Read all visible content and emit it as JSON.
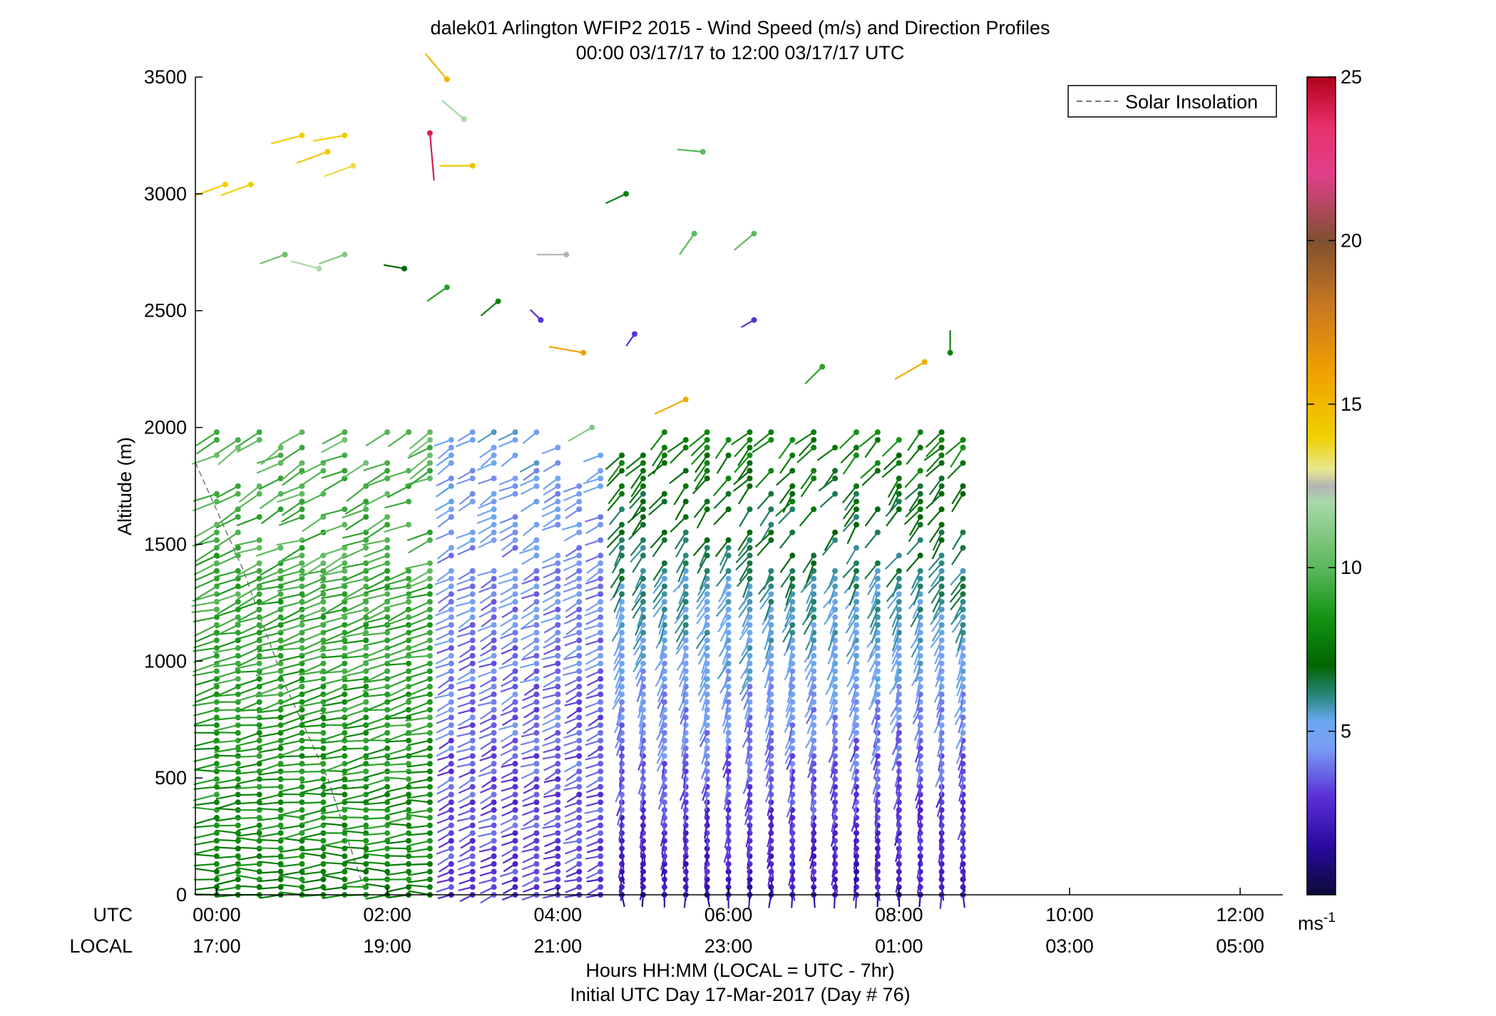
{
  "title_line1": "dalek01 Arlington WFIP2 2015 - Wind Speed (m/s) and Direction Profiles",
  "title_line2": "00:00 03/17/17 to 12:00 03/17/17  UTC",
  "ylabel": "Altitude (m)",
  "xlabel_line1": "Hours HH:MM  (LOCAL = UTC - 7hr)",
  "xlabel_line2": "Initial UTC Day 17-Mar-2017 (Day # 76)",
  "utc_row_label": "UTC",
  "local_row_label": "LOCAL",
  "legend_label": "Solar Insolation",
  "colorbar_unit": "ms",
  "colorbar_unit_exp": "-1",
  "chart_data": {
    "type": "scatter",
    "description_kind": "wind barb profile plot",
    "x_range_hours": [
      -0.25,
      12.5
    ],
    "y_range_m": [
      0,
      3500
    ],
    "y_ticks": [
      {
        "value": 0,
        "label": "0"
      },
      {
        "value": 500,
        "label": "500"
      },
      {
        "value": 1000,
        "label": "1000"
      },
      {
        "value": 1500,
        "label": "1500"
      },
      {
        "value": 2000,
        "label": "2000"
      },
      {
        "value": 2500,
        "label": "2500"
      },
      {
        "value": 3000,
        "label": "3000"
      },
      {
        "value": 3500,
        "label": "3500"
      }
    ],
    "x_ticks": [
      {
        "value": 0,
        "utc": "00:00",
        "local": "17:00"
      },
      {
        "value": 2,
        "utc": "02:00",
        "local": "19:00"
      },
      {
        "value": 4,
        "utc": "04:00",
        "local": "21:00"
      },
      {
        "value": 6,
        "utc": "06:00",
        "local": "23:00"
      },
      {
        "value": 8,
        "utc": "08:00",
        "local": "01:00"
      },
      {
        "value": 10,
        "utc": "10:00",
        "local": "03:00"
      },
      {
        "value": 12,
        "utc": "12:00",
        "local": "05:00"
      }
    ],
    "colorbar": {
      "range": [
        0,
        25
      ],
      "ticks": [
        {
          "value": 5,
          "label": "5"
        },
        {
          "value": 10,
          "label": "10"
        },
        {
          "value": 15,
          "label": "15"
        },
        {
          "value": 20,
          "label": "20"
        },
        {
          "value": 25,
          "label": "25"
        }
      ],
      "stops": [
        {
          "v": 0,
          "c": "#0b0b3a"
        },
        {
          "v": 1.5,
          "c": "#2a0aa0"
        },
        {
          "v": 3,
          "c": "#5a30d8"
        },
        {
          "v": 4.5,
          "c": "#7a9ef4"
        },
        {
          "v": 5.3,
          "c": "#6aa8f0"
        },
        {
          "v": 6,
          "c": "#2e8a8a"
        },
        {
          "v": 7,
          "c": "#006400"
        },
        {
          "v": 8.5,
          "c": "#149414"
        },
        {
          "v": 10,
          "c": "#5cb85c"
        },
        {
          "v": 12,
          "c": "#a8d8a8"
        },
        {
          "v": 12.5,
          "c": "#b4b4b4"
        },
        {
          "v": 13,
          "c": "#e8e890"
        },
        {
          "v": 14,
          "c": "#f0d000"
        },
        {
          "v": 16,
          "c": "#f0a000"
        },
        {
          "v": 18,
          "c": "#c87820"
        },
        {
          "v": 20,
          "c": "#805030"
        },
        {
          "v": 22,
          "c": "#e0408a"
        },
        {
          "v": 23.5,
          "c": "#e8306a"
        },
        {
          "v": 25,
          "c": "#b0001a"
        }
      ]
    },
    "solar_insolation_line": {
      "style": "dashed gray",
      "points": [
        [
          -0.25,
          1850
        ],
        [
          0.3,
          1400
        ],
        [
          0.8,
          900
        ],
        [
          1.3,
          500
        ],
        [
          1.75,
          0
        ]
      ]
    },
    "wind_profile": {
      "time_start_h": 0,
      "time_end_h": 8.75,
      "time_step_h": 0.25,
      "altitude_start_m": 0,
      "altitude_step_m": 33,
      "regimes": [
        {
          "t_from": 0,
          "t_to": 2.5,
          "low_top_m": 2000,
          "low_speed": 8,
          "low_dir_deg": 270,
          "upper_speed": 10,
          "upper_dir_deg": 240
        },
        {
          "t_from": 2.5,
          "t_to": 4.5,
          "low_top_m": 2000,
          "low_speed": 3,
          "low_dir_deg": 250,
          "upper_speed": 5,
          "upper_dir_deg": 240
        },
        {
          "t_from": 4.5,
          "t_to": 8.75,
          "low_top_m": 2000,
          "low_speed": 2,
          "low_dir_deg": 180,
          "upper_speed": 8,
          "upper_dir_deg": 225
        }
      ]
    },
    "sparse_upper_points": [
      {
        "t": 0.1,
        "alt": 3040,
        "speed": 14,
        "dir": 250
      },
      {
        "t": 0.4,
        "alt": 3040,
        "speed": 14,
        "dir": 250
      },
      {
        "t": 1.0,
        "alt": 3250,
        "speed": 14,
        "dir": 255
      },
      {
        "t": 1.3,
        "alt": 3180,
        "speed": 14.5,
        "dir": 250
      },
      {
        "t": 1.5,
        "alt": 3250,
        "speed": 14,
        "dir": 260
      },
      {
        "t": 1.6,
        "alt": 3120,
        "speed": 13.5,
        "dir": 250
      },
      {
        "t": 2.5,
        "alt": 3260,
        "speed": 24,
        "dir": 175
      },
      {
        "t": 2.7,
        "alt": 3490,
        "speed": 15,
        "dir": 320
      },
      {
        "t": 2.9,
        "alt": 3320,
        "speed": 12,
        "dir": 310
      },
      {
        "t": 3.0,
        "alt": 3120,
        "speed": 14.5,
        "dir": 270
      },
      {
        "t": 0.8,
        "alt": 2740,
        "speed": 10.5,
        "dir": 250
      },
      {
        "t": 1.2,
        "alt": 2680,
        "speed": 12,
        "dir": 285
      },
      {
        "t": 1.5,
        "alt": 2740,
        "speed": 11,
        "dir": 250
      },
      {
        "t": 2.2,
        "alt": 2680,
        "speed": 7,
        "dir": 280
      },
      {
        "t": 2.7,
        "alt": 2600,
        "speed": 9,
        "dir": 235
      },
      {
        "t": 3.3,
        "alt": 2540,
        "speed": 8,
        "dir": 230
      },
      {
        "t": 3.8,
        "alt": 2460,
        "speed": 3,
        "dir": 315
      },
      {
        "t": 4.3,
        "alt": 2320,
        "speed": 16,
        "dir": 280
      },
      {
        "t": 4.9,
        "alt": 2400,
        "speed": 3,
        "dir": 215
      },
      {
        "t": 5.6,
        "alt": 2830,
        "speed": 10,
        "dir": 215
      },
      {
        "t": 6.3,
        "alt": 2830,
        "speed": 10,
        "dir": 230
      },
      {
        "t": 6.3,
        "alt": 2460,
        "speed": 3,
        "dir": 240
      },
      {
        "t": 7.1,
        "alt": 2260,
        "speed": 9,
        "dir": 225
      },
      {
        "t": 8.3,
        "alt": 2280,
        "speed": 15.5,
        "dir": 240
      },
      {
        "t": 8.6,
        "alt": 2320,
        "speed": 8,
        "dir": 360
      },
      {
        "t": 5.7,
        "alt": 3180,
        "speed": 10,
        "dir": 275
      },
      {
        "t": 4.8,
        "alt": 3000,
        "speed": 8,
        "dir": 245
      },
      {
        "t": 4.1,
        "alt": 2740,
        "speed": 12.5,
        "dir": 270
      },
      {
        "t": 5.5,
        "alt": 2120,
        "speed": 15.5,
        "dir": 245
      },
      {
        "t": 4.4,
        "alt": 2000,
        "speed": 11,
        "dir": 240
      }
    ]
  }
}
